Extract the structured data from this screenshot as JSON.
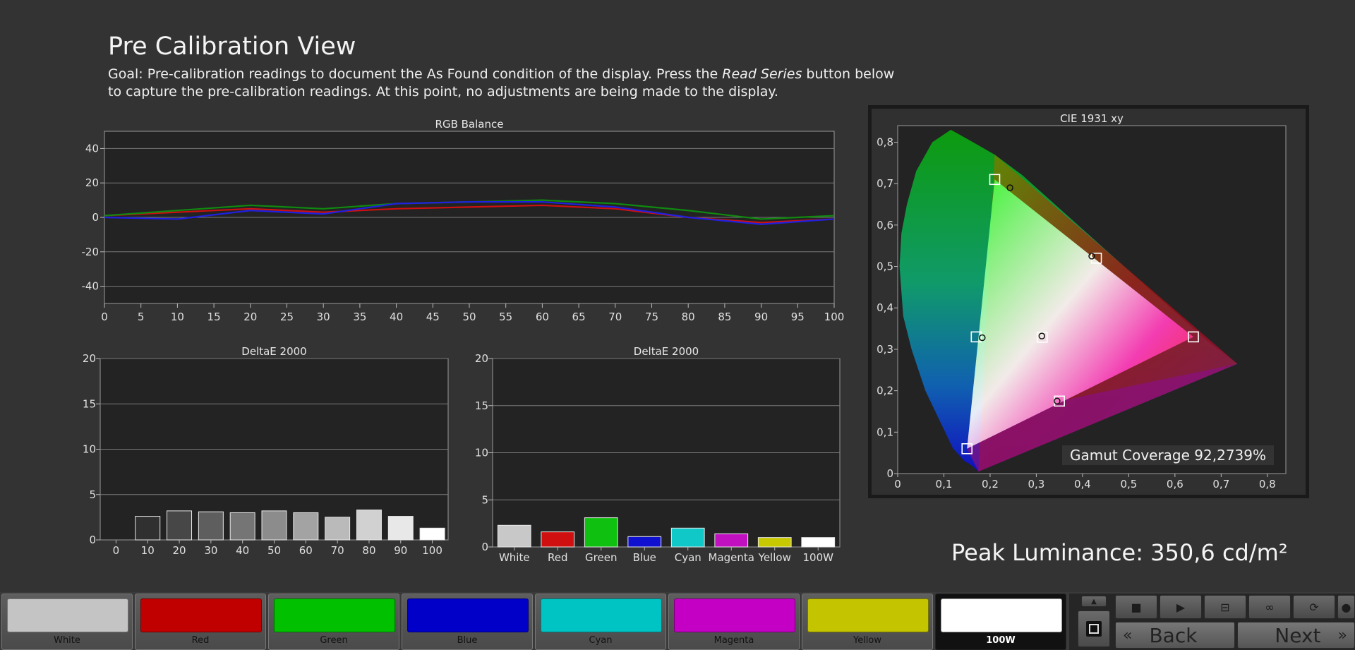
{
  "page": {
    "title": "Pre Calibration View",
    "goal_prefix": "Goal: Pre-calibration readings to document the As Found condition of the display. Press the ",
    "goal_emphasis": "Read Series",
    "goal_suffix": " button below to capture the pre-calibration readings. At this point, no adjustments are being made to the display."
  },
  "chart_data": [
    {
      "type": "line",
      "title": "RGB Balance",
      "x": [
        0,
        10,
        20,
        30,
        40,
        50,
        60,
        70,
        80,
        90,
        100
      ],
      "xticks": [
        0,
        5,
        10,
        15,
        20,
        25,
        30,
        35,
        40,
        45,
        50,
        55,
        60,
        65,
        70,
        75,
        80,
        85,
        90,
        95,
        100
      ],
      "yticks": [
        40,
        20,
        0,
        -20,
        -40
      ],
      "xlim": [
        0,
        100
      ],
      "ylim": [
        -50,
        50
      ],
      "series": [
        {
          "color": "#d01010",
          "values": [
            1,
            3,
            5,
            3,
            5,
            6,
            7,
            5,
            0,
            -3,
            -1
          ]
        },
        {
          "color": "#0f8a0f",
          "values": [
            1,
            4,
            7,
            5,
            8,
            9,
            10,
            8,
            4,
            -1,
            1
          ]
        },
        {
          "color": "#2020e0",
          "values": [
            0,
            -1,
            4,
            2,
            8,
            9,
            9,
            6,
            0,
            -4,
            -1
          ]
        }
      ],
      "grid": true
    },
    {
      "type": "bar",
      "title": "DeltaE 2000",
      "categories": [
        "0",
        "10",
        "20",
        "30",
        "40",
        "50",
        "60",
        "70",
        "80",
        "90",
        "100"
      ],
      "values": [
        0,
        2.6,
        3.2,
        3.1,
        3.0,
        3.2,
        3.0,
        2.5,
        3.3,
        2.6,
        1.3
      ],
      "ylim": [
        0,
        20
      ],
      "yticks": [
        0,
        5,
        10,
        15,
        20
      ]
    },
    {
      "type": "bar",
      "title": "DeltaE 2000",
      "categories": [
        "White",
        "Red",
        "Green",
        "Blue",
        "Cyan",
        "Magenta",
        "Yellow",
        "100W"
      ],
      "values": [
        2.3,
        1.6,
        3.1,
        1.1,
        2.0,
        1.4,
        1.0,
        1.0
      ],
      "colors": [
        "#c8c8c8",
        "#d01010",
        "#10c010",
        "#1010d0",
        "#10c8c8",
        "#c010c0",
        "#c8c800",
        "#ffffff"
      ],
      "ylim": [
        0,
        20
      ],
      "yticks": [
        0,
        5,
        10,
        15,
        20
      ]
    },
    {
      "type": "scatter",
      "title": "CIE 1931 xy",
      "xticks": [
        "0",
        "0,1",
        "0,2",
        "0,3",
        "0,4",
        "0,5",
        "0,6",
        "0,7",
        "0,8"
      ],
      "yticks": [
        "0",
        "0,1",
        "0,2",
        "0,3",
        "0,4",
        "0,5",
        "0,6",
        "0,7",
        "0,8"
      ],
      "xlim": [
        0,
        0.84
      ],
      "ylim": [
        0,
        0.84
      ],
      "gamut": [
        [
          0.64,
          0.33
        ],
        [
          0.21,
          0.71
        ],
        [
          0.15,
          0.06
        ]
      ],
      "targets": [
        {
          "name": "Red",
          "x": 0.64,
          "y": 0.33
        },
        {
          "name": "Green",
          "x": 0.21,
          "y": 0.71
        },
        {
          "name": "Blue",
          "x": 0.15,
          "y": 0.06
        },
        {
          "name": "Cyan",
          "x": 0.17,
          "y": 0.33
        },
        {
          "name": "Magenta",
          "x": 0.35,
          "y": 0.175
        },
        {
          "name": "Yellow",
          "x": 0.43,
          "y": 0.52
        },
        {
          "name": "White",
          "x": 0.3127,
          "y": 0.329
        }
      ],
      "measured": [
        {
          "name": "Green",
          "x": 0.243,
          "y": 0.69
        },
        {
          "name": "Yellow",
          "x": 0.42,
          "y": 0.525
        },
        {
          "name": "Cyan",
          "x": 0.183,
          "y": 0.328
        },
        {
          "name": "White",
          "x": 0.312,
          "y": 0.332
        },
        {
          "name": "Magenta",
          "x": 0.345,
          "y": 0.175
        }
      ],
      "annotation": "Gamut Coverage 92,2739%"
    }
  ],
  "peak_luminance": "Peak Luminance: 350,6 cd/m²",
  "swatches": [
    {
      "label": "White",
      "color": "#c4c4c4"
    },
    {
      "label": "Red",
      "color": "#c00000"
    },
    {
      "label": "Green",
      "color": "#00c000"
    },
    {
      "label": "Blue",
      "color": "#0000c8"
    },
    {
      "label": "Cyan",
      "color": "#00c4c4"
    },
    {
      "label": "Magenta",
      "color": "#c400c4"
    },
    {
      "label": "Yellow",
      "color": "#c4c400"
    },
    {
      "label": "100W",
      "color": "#ffffff",
      "selected": true
    }
  ],
  "controls": {
    "back_label": "Back",
    "next_label": "Next",
    "icons": [
      "stop-icon",
      "play-icon",
      "read-series-icon",
      "continuous-icon",
      "refresh-icon",
      "record-icon"
    ]
  }
}
